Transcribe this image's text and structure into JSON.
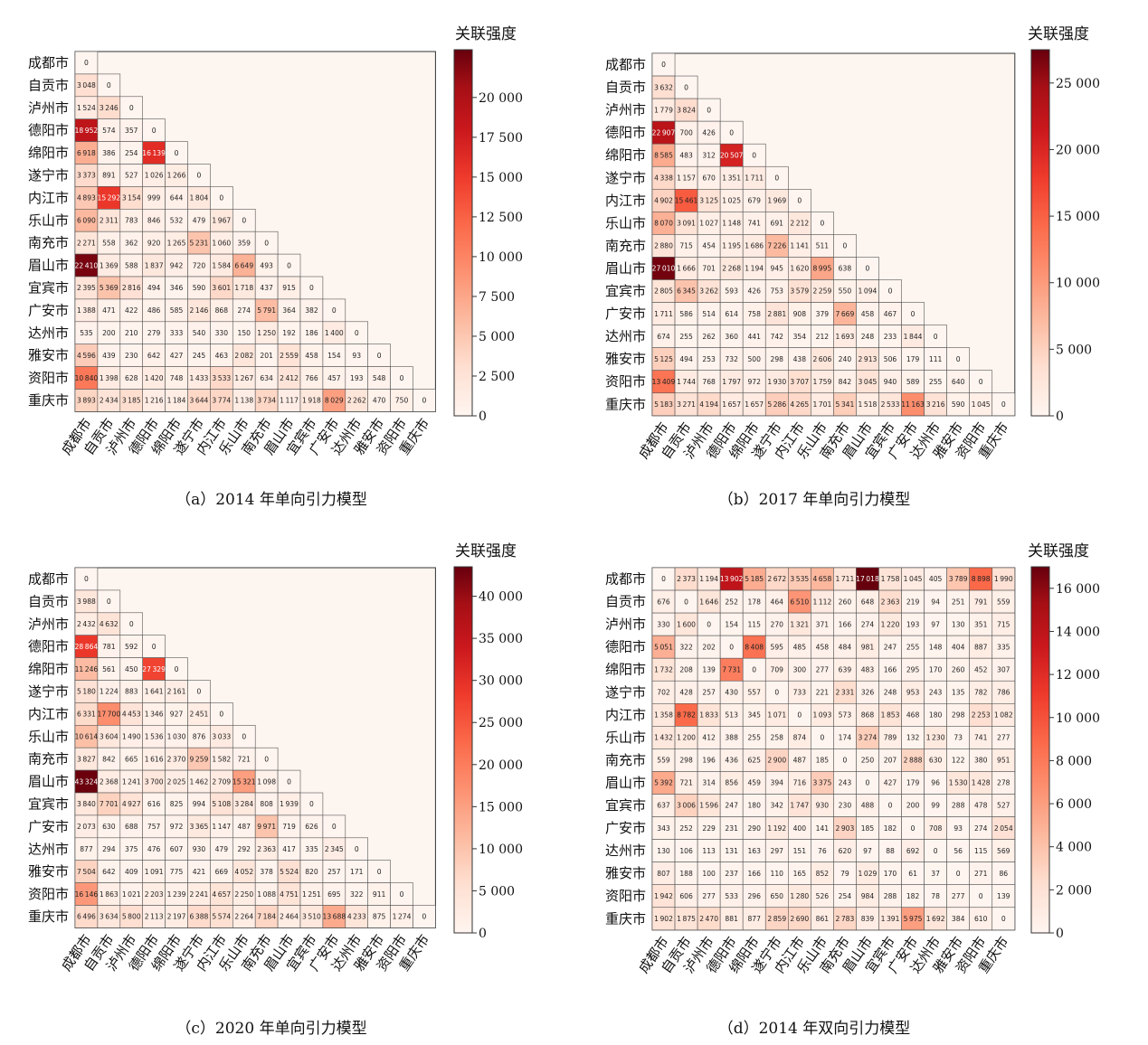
{
  "chart_data": [
    {
      "type": "heatmap",
      "title": "",
      "caption": "（a）2014 年单向引力模型",
      "colorbar_title": "关联强度",
      "colorbar_ticks": [
        "0",
        "2 500",
        "5 000",
        "7 500",
        "10 000",
        "12 500",
        "15 000",
        "17 500",
        "20 000"
      ],
      "colorbar_range": [
        0,
        23000
      ],
      "triangle": "lower",
      "categories": [
        "成都市",
        "自贡市",
        "泸州市",
        "德阳市",
        "绵阳市",
        "遂宁市",
        "内江市",
        "乐山市",
        "南充市",
        "眉山市",
        "宜宾市",
        "广安市",
        "达州市",
        "雅安市",
        "资阳市",
        "重庆市"
      ],
      "values": [
        [
          0
        ],
        [
          3048,
          0
        ],
        [
          1524,
          3246,
          0
        ],
        [
          18952,
          574,
          357,
          0
        ],
        [
          6918,
          386,
          254,
          16139,
          0
        ],
        [
          3373,
          891,
          527,
          1026,
          1266,
          0
        ],
        [
          4893,
          15292,
          3154,
          999,
          644,
          1804,
          0
        ],
        [
          6090,
          2311,
          783,
          846,
          532,
          479,
          1967,
          0
        ],
        [
          2271,
          558,
          362,
          920,
          1265,
          5231,
          1060,
          359,
          0
        ],
        [
          22410,
          1369,
          588,
          1837,
          942,
          720,
          1584,
          6649,
          493,
          0
        ],
        [
          2395,
          5369,
          2816,
          494,
          346,
          590,
          3601,
          1718,
          437,
          915,
          0
        ],
        [
          1388,
          471,
          422,
          486,
          585,
          2146,
          868,
          274,
          5791,
          364,
          382,
          0
        ],
        [
          535,
          200,
          210,
          279,
          333,
          540,
          330,
          150,
          1250,
          192,
          186,
          1400,
          0
        ],
        [
          4596,
          439,
          230,
          642,
          427,
          245,
          463,
          2082,
          201,
          2559,
          458,
          154,
          93,
          0
        ],
        [
          10840,
          1398,
          628,
          1420,
          748,
          1433,
          3533,
          1267,
          634,
          2412,
          766,
          457,
          193,
          548,
          0
        ],
        [
          3893,
          2434,
          3185,
          1216,
          1184,
          3644,
          3774,
          1138,
          3734,
          1117,
          1918,
          8029,
          2262,
          470,
          750,
          0
        ]
      ]
    },
    {
      "type": "heatmap",
      "title": "",
      "caption": "（b）2017 年单向引力模型",
      "colorbar_title": "关联强度",
      "colorbar_ticks": [
        "0",
        "5 000",
        "10 000",
        "15 000",
        "20 000",
        "25 000"
      ],
      "colorbar_range": [
        0,
        27500
      ],
      "triangle": "lower",
      "categories": [
        "成都市",
        "自贡市",
        "泸州市",
        "德阳市",
        "绵阳市",
        "遂宁市",
        "内江市",
        "乐山市",
        "南充市",
        "眉山市",
        "宜宾市",
        "广安市",
        "达州市",
        "雅安市",
        "资阳市",
        "重庆市"
      ],
      "values": [
        [
          0
        ],
        [
          3632,
          0
        ],
        [
          1779,
          3824,
          0
        ],
        [
          22907,
          700,
          426,
          0
        ],
        [
          8585,
          483,
          312,
          20507,
          0
        ],
        [
          4338,
          1157,
          670,
          1351,
          1711,
          0
        ],
        [
          4902,
          15461,
          3125,
          1025,
          679,
          1969,
          0
        ],
        [
          8070,
          3091,
          1027,
          1148,
          741,
          691,
          2212,
          0
        ],
        [
          2880,
          715,
          454,
          1195,
          1686,
          7226,
          1141,
          511,
          0
        ],
        [
          27010,
          1666,
          701,
          2268,
          1194,
          945,
          1620,
          8995,
          638,
          0
        ],
        [
          2805,
          6345,
          3262,
          593,
          426,
          753,
          3579,
          2259,
          550,
          1094,
          0
        ],
        [
          1711,
          586,
          514,
          614,
          758,
          2881,
          908,
          379,
          7669,
          458,
          467,
          0
        ],
        [
          674,
          255,
          262,
          360,
          441,
          742,
          354,
          212,
          1693,
          248,
          233,
          1844,
          0
        ],
        [
          5125,
          494,
          253,
          732,
          500,
          298,
          438,
          2606,
          240,
          2913,
          506,
          179,
          111,
          0
        ],
        [
          13409,
          1744,
          768,
          1797,
          972,
          1930,
          3707,
          1759,
          842,
          3045,
          940,
          589,
          255,
          640,
          0
        ],
        [
          5183,
          3271,
          4194,
          1657,
          1657,
          5286,
          4265,
          1701,
          5341,
          1518,
          2533,
          11163,
          3216,
          590,
          1045,
          0
        ]
      ]
    },
    {
      "type": "heatmap",
      "title": "",
      "caption": "（c）2020 年单向引力模型",
      "colorbar_title": "关联强度",
      "colorbar_ticks": [
        "0",
        "5 000",
        "10 000",
        "15 000",
        "20 000",
        "25 000",
        "30 000",
        "35 000",
        "40 000"
      ],
      "colorbar_range": [
        0,
        43500
      ],
      "triangle": "lower",
      "categories": [
        "成都市",
        "自贡市",
        "泸州市",
        "德阳市",
        "绵阳市",
        "遂宁市",
        "内江市",
        "乐山市",
        "南充市",
        "眉山市",
        "宜宾市",
        "广安市",
        "达州市",
        "雅安市",
        "资阳市",
        "重庆市"
      ],
      "values": [
        [
          0
        ],
        [
          3988,
          0
        ],
        [
          2432,
          4632,
          0
        ],
        [
          28864,
          781,
          592,
          0
        ],
        [
          11246,
          561,
          450,
          27329,
          0
        ],
        [
          5180,
          1224,
          883,
          1641,
          2161,
          0
        ],
        [
          6331,
          17700,
          4453,
          1346,
          927,
          2451,
          0
        ],
        [
          10614,
          3604,
          1490,
          1536,
          1030,
          876,
          3033,
          0
        ],
        [
          3827,
          842,
          665,
          1616,
          2370,
          9259,
          1582,
          721,
          0
        ],
        [
          43324,
          2368,
          1241,
          3700,
          2025,
          1462,
          2709,
          15321,
          1098,
          0
        ],
        [
          3840,
          7701,
          4927,
          616,
          825,
          994,
          5108,
          3284,
          808,
          1939,
          0
        ],
        [
          2073,
          630,
          688,
          757,
          972,
          3365,
          1147,
          487,
          9971,
          719,
          626,
          0
        ],
        [
          877,
          294,
          375,
          476,
          607,
          930,
          479,
          292,
          2363,
          417,
          335,
          2345,
          0
        ],
        [
          7504,
          642,
          409,
          1091,
          775,
          421,
          669,
          4052,
          378,
          5524,
          820,
          257,
          171,
          0
        ],
        [
          16146,
          1863,
          1021,
          2203,
          1239,
          2241,
          4657,
          2250,
          1088,
          4751,
          1251,
          695,
          322,
          911,
          0
        ],
        [
          6496,
          3634,
          5800,
          2113,
          2197,
          6388,
          5574,
          2264,
          7184,
          2464,
          3510,
          13688,
          4233,
          875,
          1274,
          0
        ]
      ]
    },
    {
      "type": "heatmap",
      "title": "",
      "caption": "（d）2014 年双向引力模型",
      "colorbar_title": "关联强度",
      "colorbar_ticks": [
        "0",
        "2 000",
        "4 000",
        "6 000",
        "8 000",
        "10 000",
        "12 000",
        "14 000",
        "16 000"
      ],
      "colorbar_range": [
        0,
        17000
      ],
      "triangle": "full",
      "categories": [
        "成都市",
        "自贡市",
        "泸州市",
        "德阳市",
        "绵阳市",
        "遂宁市",
        "内江市",
        "乐山市",
        "南充市",
        "眉山市",
        "宜宾市",
        "广安市",
        "达州市",
        "雅安市",
        "资阳市",
        "重庆市"
      ],
      "values": [
        [
          0,
          2373,
          1194,
          13902,
          5185,
          2672,
          3535,
          4658,
          1711,
          17018,
          1758,
          1045,
          405,
          3789,
          8898,
          1990
        ],
        [
          676,
          0,
          1646,
          252,
          178,
          464,
          6510,
          1112,
          260,
          648,
          2363,
          219,
          94,
          251,
          791,
          559
        ],
        [
          330,
          1600,
          0,
          154,
          115,
          270,
          1321,
          371,
          166,
          274,
          1220,
          193,
          97,
          130,
          351,
          715
        ],
        [
          5051,
          322,
          202,
          0,
          8408,
          595,
          485,
          458,
          484,
          981,
          247,
          255,
          148,
          404,
          887,
          335
        ],
        [
          1732,
          208,
          139,
          7731,
          0,
          709,
          300,
          277,
          639,
          483,
          166,
          295,
          170,
          260,
          452,
          307
        ],
        [
          702,
          428,
          257,
          430,
          557,
          0,
          733,
          221,
          2331,
          326,
          248,
          953,
          243,
          135,
          782,
          786
        ],
        [
          1358,
          8782,
          1833,
          513,
          345,
          1071,
          0,
          1093,
          573,
          868,
          1853,
          468,
          180,
          298,
          2253,
          1082
        ],
        [
          1432,
          1200,
          412,
          388,
          255,
          258,
          874,
          0,
          174,
          3274,
          789,
          132,
          1230,
          73,
          741,
          277
        ],
        [
          559,
          298,
          196,
          436,
          625,
          2900,
          487,
          185,
          0,
          250,
          207,
          2888,
          630,
          122,
          380,
          951
        ],
        [
          5392,
          721,
          314,
          856,
          459,
          394,
          716,
          3375,
          243,
          0,
          427,
          179,
          96,
          1530,
          1428,
          278
        ],
        [
          637,
          3006,
          1596,
          247,
          180,
          342,
          1747,
          930,
          230,
          488,
          0,
          200,
          99,
          288,
          478,
          527
        ],
        [
          343,
          252,
          229,
          231,
          290,
          1192,
          400,
          141,
          2903,
          185,
          182,
          0,
          708,
          93,
          274,
          2054
        ],
        [
          130,
          106,
          113,
          131,
          163,
          297,
          151,
          76,
          620,
          97,
          88,
          692,
          0,
          56,
          115,
          569
        ],
        [
          807,
          188,
          100,
          237,
          166,
          110,
          165,
          852,
          79,
          1029,
          170,
          61,
          37,
          0,
          271,
          86
        ],
        [
          1942,
          606,
          277,
          533,
          296,
          650,
          1280,
          526,
          254,
          984,
          288,
          182,
          78,
          277,
          0,
          139
        ],
        [
          1902,
          1875,
          2470,
          881,
          877,
          2859,
          2690,
          861,
          2783,
          839,
          1391,
          5975,
          1692,
          384,
          610,
          0
        ]
      ]
    }
  ]
}
